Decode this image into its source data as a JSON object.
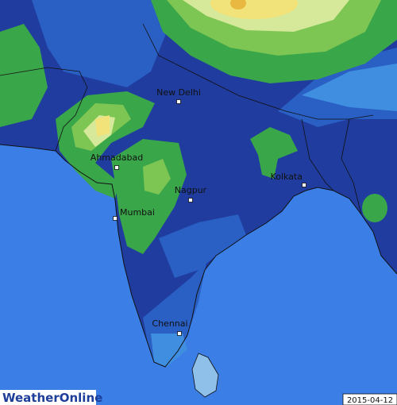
{
  "map": {
    "cities": [
      "New Delhi",
      "Ahmadabad",
      "Mumbai",
      "Nagpur",
      "Kolkata",
      "Chennai"
    ],
    "date": "2015-04-12",
    "logo": "WeatherOnline"
  }
}
